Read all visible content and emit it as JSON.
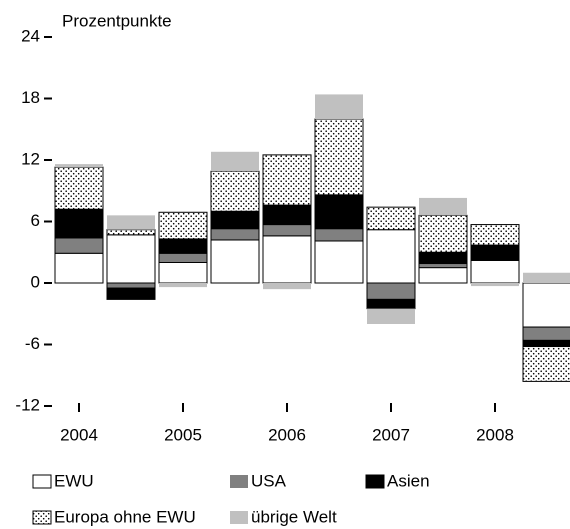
{
  "chart_data": {
    "type": "stacked_bar",
    "y_label": "Prozentpunkte",
    "categories": [
      "2004",
      null,
      "2005",
      null,
      "2006",
      null,
      "2007",
      null,
      "2008",
      null
    ],
    "series": [
      {
        "name": "EWU",
        "color": "#ffffff",
        "values": [
          2.9,
          4.7,
          2.0,
          4.2,
          4.6,
          4.1,
          5.2,
          1.5,
          2.2,
          -4.3
        ]
      },
      {
        "name": "USA",
        "color": "#808080",
        "values": [
          1.5,
          -0.5,
          0.9,
          1.1,
          1.1,
          1.2,
          -1.6,
          0.4,
          0.1,
          -1.3
        ]
      },
      {
        "name": "Asien",
        "color": "#000000",
        "values": [
          2.8,
          -1.1,
          1.4,
          1.7,
          1.9,
          3.3,
          -0.9,
          1.1,
          1.4,
          -0.6
        ]
      },
      {
        "name": "Europa ohne EWU",
        "color": "dots",
        "values": [
          4.1,
          0.5,
          2.6,
          3.9,
          4.9,
          7.4,
          2.2,
          3.6,
          2.0,
          -3.4
        ]
      },
      {
        "name": "übrige Welt",
        "color": "#c0c0c0",
        "values": [
          0.3,
          1.4,
          -0.4,
          1.9,
          -0.6,
          2.4,
          -1.5,
          1.7,
          -0.3,
          1.0
        ]
      }
    ],
    "ylim": [
      -12,
      24
    ],
    "yticks": [
      -12,
      -6,
      0,
      6,
      12,
      18,
      24
    ],
    "grid": false
  }
}
